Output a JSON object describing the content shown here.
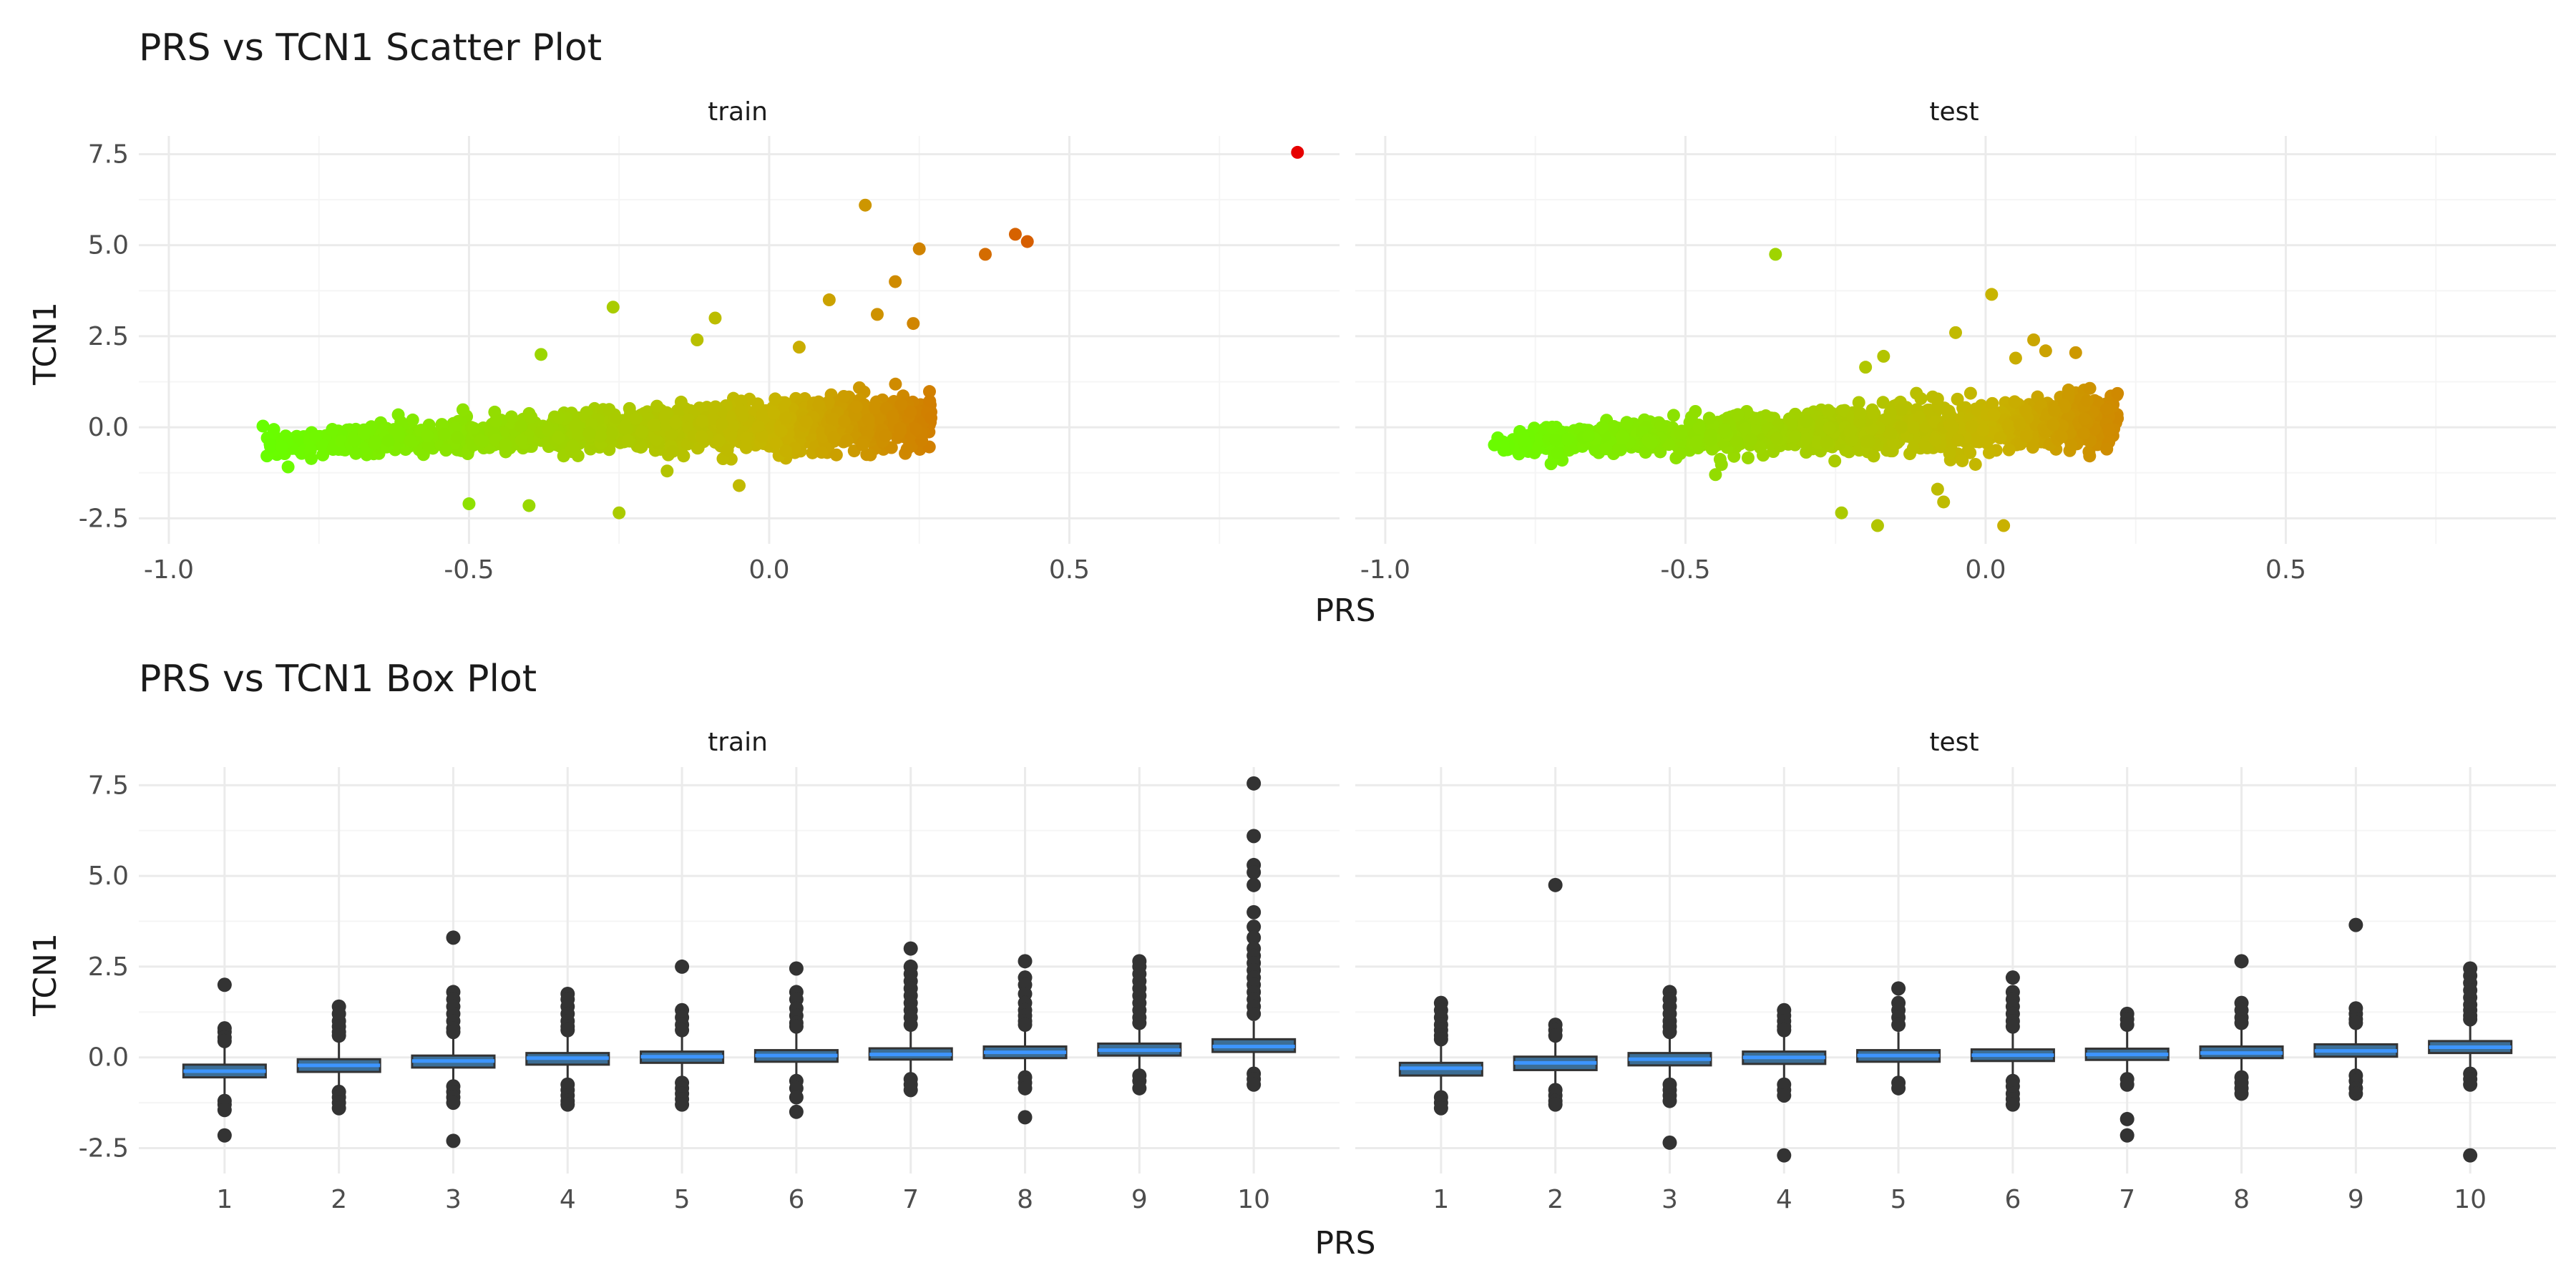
{
  "chart_data": [
    {
      "type": "scatter",
      "title": "PRS vs TCN1 Scatter Plot",
      "xlabel": "PRS",
      "ylabel": "TCN1",
      "xlim": [
        -1.05,
        0.95
      ],
      "ylim": [
        -3.2,
        8.0
      ],
      "x_ticks": [
        "-1.0",
        "-0.5",
        "0.0",
        "0.5"
      ],
      "x_tick_values": [
        -1.0,
        -0.5,
        0.0,
        0.5
      ],
      "y_ticks": [
        "-2.5",
        "0.0",
        "2.5",
        "5.0",
        "7.5"
      ],
      "y_tick_values": [
        -2.5,
        0.0,
        2.5,
        5.0,
        7.5
      ],
      "grid": true,
      "color_scale": {
        "low": "#66ff00",
        "mid": "#c8b400",
        "high": "#e60000",
        "domain": [
          -0.85,
          0.88
        ]
      },
      "panels": [
        {
          "label": "train",
          "cloud": {
            "x_min": -0.85,
            "x_max": 0.27,
            "slope": 1.1,
            "intercept": 0.05,
            "sd": 0.3,
            "n": 1400
          },
          "points": [
            {
              "x": 0.88,
              "y": 7.55
            },
            {
              "x": 0.16,
              "y": 6.1
            },
            {
              "x": 0.41,
              "y": 5.3
            },
            {
              "x": 0.43,
              "y": 5.1
            },
            {
              "x": 0.36,
              "y": 4.75
            },
            {
              "x": 0.25,
              "y": 4.9
            },
            {
              "x": 0.21,
              "y": 4.0
            },
            {
              "x": 0.1,
              "y": 3.5
            },
            {
              "x": 0.18,
              "y": 3.1
            },
            {
              "x": 0.24,
              "y": 2.85
            },
            {
              "x": -0.26,
              "y": 3.3
            },
            {
              "x": -0.09,
              "y": 3.0
            },
            {
              "x": -0.38,
              "y": 2.0
            },
            {
              "x": -0.25,
              "y": -2.35
            },
            {
              "x": -0.4,
              "y": -2.15
            },
            {
              "x": -0.5,
              "y": -2.1
            },
            {
              "x": -0.05,
              "y": -1.6
            },
            {
              "x": -0.17,
              "y": -1.2
            },
            {
              "x": -0.12,
              "y": 2.4
            },
            {
              "x": 0.05,
              "y": 2.2
            }
          ]
        },
        {
          "label": "test",
          "cloud": {
            "x_min": -0.82,
            "x_max": 0.22,
            "slope": 1.0,
            "intercept": 0.05,
            "sd": 0.3,
            "n": 1400
          },
          "points": [
            {
              "x": -0.35,
              "y": 4.75
            },
            {
              "x": 0.01,
              "y": 3.65
            },
            {
              "x": -0.05,
              "y": 2.6
            },
            {
              "x": 0.08,
              "y": 2.4
            },
            {
              "x": 0.1,
              "y": 2.1
            },
            {
              "x": 0.05,
              "y": 1.9
            },
            {
              "x": -0.17,
              "y": 1.95
            },
            {
              "x": -0.2,
              "y": 1.65
            },
            {
              "x": -0.24,
              "y": -2.35
            },
            {
              "x": -0.18,
              "y": -2.7
            },
            {
              "x": -0.07,
              "y": -2.05
            },
            {
              "x": 0.03,
              "y": -2.7
            },
            {
              "x": -0.08,
              "y": -1.7
            },
            {
              "x": -0.45,
              "y": -1.3
            },
            {
              "x": 0.15,
              "y": 2.05
            }
          ]
        }
      ]
    },
    {
      "type": "box",
      "title": "PRS vs TCN1 Box Plot",
      "xlabel": "PRS",
      "ylabel": "TCN1",
      "ylim": [
        -3.2,
        8.0
      ],
      "categories": [
        "1",
        "2",
        "3",
        "4",
        "5",
        "6",
        "7",
        "8",
        "9",
        "10"
      ],
      "y_ticks": [
        "-2.5",
        "0.0",
        "2.5",
        "5.0",
        "7.5"
      ],
      "y_tick_values": [
        -2.5,
        0.0,
        2.5,
        5.0,
        7.5
      ],
      "grid": true,
      "box_fill": "#3c6e96",
      "median_color": "#3d95ff",
      "panels": [
        {
          "label": "train",
          "boxes": [
            {
              "q1": -0.55,
              "median": -0.38,
              "q3": -0.2,
              "wmin": -1.05,
              "wmax": 0.3,
              "outliers": [
                2.0,
                0.8,
                0.7,
                0.55,
                0.45,
                -1.2,
                -1.3,
                -1.45,
                -2.15
              ]
            },
            {
              "q1": -0.4,
              "median": -0.22,
              "q3": -0.05,
              "wmin": -0.85,
              "wmax": 0.45,
              "outliers": [
                1.4,
                1.2,
                1.0,
                0.85,
                0.7,
                0.6,
                -0.95,
                -1.1,
                -1.25,
                -1.4
              ]
            },
            {
              "q1": -0.28,
              "median": -0.1,
              "q3": 0.05,
              "wmin": -0.75,
              "wmax": 0.55,
              "outliers": [
                3.3,
                1.8,
                1.6,
                1.4,
                1.2,
                1.0,
                0.8,
                0.7,
                -0.8,
                -0.95,
                -1.1,
                -1.25,
                -2.3
              ]
            },
            {
              "q1": -0.2,
              "median": -0.02,
              "q3": 0.12,
              "wmin": -0.65,
              "wmax": 0.6,
              "outliers": [
                1.75,
                1.6,
                1.4,
                1.2,
                1.0,
                0.85,
                0.75,
                -0.75,
                -0.9,
                -1.05,
                -1.2,
                -1.3
              ]
            },
            {
              "q1": -0.15,
              "median": 0.02,
              "q3": 0.16,
              "wmin": -0.6,
              "wmax": 0.62,
              "outliers": [
                2.5,
                1.3,
                1.1,
                0.9,
                0.75,
                -0.7,
                -0.85,
                -1.0,
                -1.15,
                -1.3
              ]
            },
            {
              "q1": -0.12,
              "median": 0.05,
              "q3": 0.2,
              "wmin": -0.55,
              "wmax": 0.7,
              "outliers": [
                2.45,
                1.8,
                1.6,
                1.35,
                1.15,
                0.95,
                0.85,
                -0.65,
                -0.85,
                -1.1,
                -1.5
              ]
            },
            {
              "q1": -0.06,
              "median": 0.08,
              "q3": 0.25,
              "wmin": -0.5,
              "wmax": 0.75,
              "outliers": [
                3.0,
                2.5,
                2.3,
                2.1,
                1.9,
                1.7,
                1.5,
                1.3,
                1.1,
                0.9,
                -0.6,
                -0.75,
                -0.9
              ]
            },
            {
              "q1": -0.02,
              "median": 0.14,
              "q3": 0.3,
              "wmin": -0.45,
              "wmax": 0.8,
              "outliers": [
                2.65,
                2.2,
                2.0,
                1.75,
                1.5,
                1.3,
                1.15,
                1.0,
                0.9,
                -0.55,
                -0.7,
                -0.85,
                -1.65
              ]
            },
            {
              "q1": 0.05,
              "median": 0.2,
              "q3": 0.38,
              "wmin": -0.4,
              "wmax": 0.85,
              "outliers": [
                2.65,
                2.5,
                2.3,
                2.1,
                1.9,
                1.7,
                1.5,
                1.3,
                1.1,
                0.95,
                -0.5,
                -0.65,
                -0.85
              ]
            },
            {
              "q1": 0.15,
              "median": 0.3,
              "q3": 0.5,
              "wmin": -0.3,
              "wmax": 1.0,
              "outliers": [
                7.55,
                6.1,
                5.3,
                5.1,
                4.75,
                4.0,
                3.6,
                3.3,
                3.0,
                2.8,
                2.6,
                2.4,
                2.2,
                2.0,
                1.8,
                1.6,
                1.4,
                1.2,
                -0.45,
                -0.6,
                -0.75
              ]
            }
          ]
        },
        {
          "label": "test",
          "boxes": [
            {
              "q1": -0.5,
              "median": -0.3,
              "q3": -0.15,
              "wmin": -1.0,
              "wmax": 0.35,
              "outliers": [
                1.5,
                1.3,
                1.1,
                0.9,
                0.75,
                0.6,
                0.5,
                -1.1,
                -1.25,
                -1.4
              ]
            },
            {
              "q1": -0.35,
              "median": -0.15,
              "q3": 0.02,
              "wmin": -0.8,
              "wmax": 0.5,
              "outliers": [
                4.75,
                0.9,
                0.75,
                0.6,
                -0.9,
                -1.05,
                -1.2,
                -1.3
              ]
            },
            {
              "q1": -0.22,
              "median": -0.05,
              "q3": 0.12,
              "wmin": -0.7,
              "wmax": 0.6,
              "outliers": [
                1.8,
                1.6,
                1.4,
                1.2,
                1.0,
                0.85,
                0.7,
                -0.75,
                -0.9,
                -1.05,
                -1.2,
                -2.35
              ]
            },
            {
              "q1": -0.18,
              "median": 0.0,
              "q3": 0.16,
              "wmin": -0.65,
              "wmax": 0.65,
              "outliers": [
                1.3,
                1.15,
                1.0,
                0.85,
                0.75,
                -0.75,
                -0.9,
                -1.05,
                -2.7
              ]
            },
            {
              "q1": -0.12,
              "median": 0.05,
              "q3": 0.2,
              "wmin": -0.6,
              "wmax": 0.7,
              "outliers": [
                1.9,
                1.5,
                1.3,
                1.1,
                0.9,
                -0.7,
                -0.85
              ]
            },
            {
              "q1": -0.1,
              "median": 0.06,
              "q3": 0.22,
              "wmin": -0.55,
              "wmax": 0.72,
              "outliers": [
                2.2,
                1.8,
                1.6,
                1.4,
                1.2,
                1.0,
                0.85,
                -0.65,
                -0.8,
                -1.0,
                -1.15,
                -1.3
              ]
            },
            {
              "q1": -0.07,
              "median": 0.08,
              "q3": 0.24,
              "wmin": -0.5,
              "wmax": 0.75,
              "outliers": [
                1.2,
                1.05,
                0.9,
                -0.6,
                -0.75,
                -1.7,
                -2.15
              ]
            },
            {
              "q1": -0.02,
              "median": 0.12,
              "q3": 0.3,
              "wmin": -0.45,
              "wmax": 0.8,
              "outliers": [
                2.65,
                1.5,
                1.3,
                1.1,
                0.95,
                -0.55,
                -0.7,
                -0.85,
                -1.0
              ]
            },
            {
              "q1": 0.02,
              "median": 0.18,
              "q3": 0.36,
              "wmin": -0.42,
              "wmax": 0.85,
              "outliers": [
                3.65,
                1.35,
                1.2,
                1.05,
                0.95,
                -0.5,
                -0.65,
                -0.85,
                -1.0
              ]
            },
            {
              "q1": 0.12,
              "median": 0.28,
              "q3": 0.45,
              "wmin": -0.32,
              "wmax": 0.95,
              "outliers": [
                2.45,
                2.25,
                2.05,
                1.85,
                1.65,
                1.45,
                1.3,
                1.15,
                1.05,
                -0.45,
                -0.6,
                -0.75,
                -2.7
              ]
            }
          ]
        }
      ]
    }
  ]
}
